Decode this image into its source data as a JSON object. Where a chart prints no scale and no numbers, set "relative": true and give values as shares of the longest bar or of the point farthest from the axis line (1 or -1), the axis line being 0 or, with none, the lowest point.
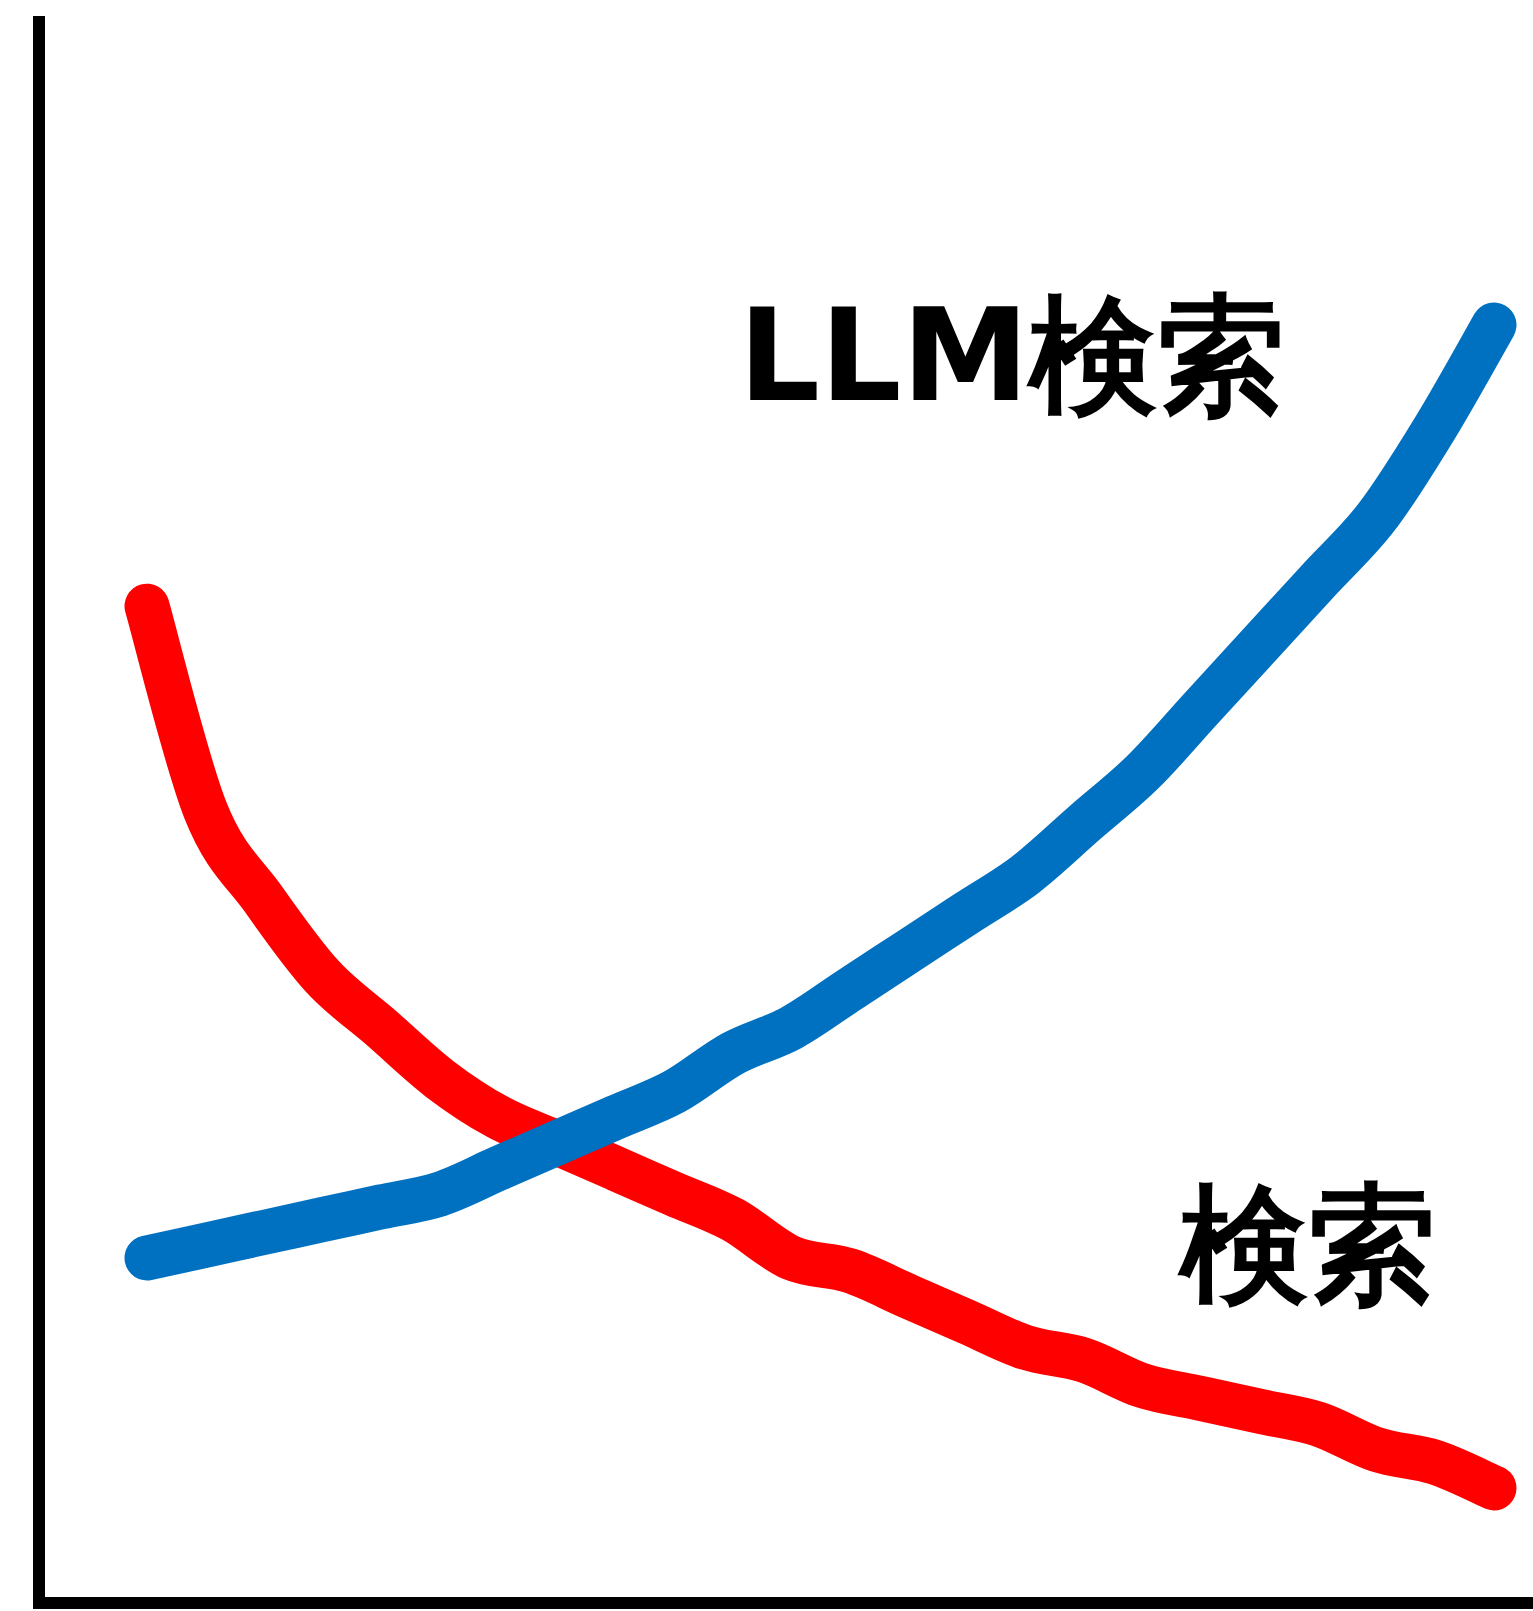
{
  "chart_data": {
    "type": "line",
    "relative": true,
    "legend": false,
    "grid": false,
    "marker": "none",
    "line_style": "solid",
    "categories": [
      null,
      null,
      null,
      null,
      null,
      null,
      null,
      null,
      null,
      null,
      null,
      null,
      null,
      null,
      null,
      null,
      null,
      null,
      null,
      null,
      null,
      null,
      null,
      null
    ],
    "series": [
      {
        "name": "検索",
        "color": "#ff0000",
        "values": [
          0.78,
          0.62,
          0.55,
          0.49,
          0.45,
          0.41,
          0.38,
          0.36,
          0.34,
          0.32,
          0.3,
          0.27,
          0.26,
          0.24,
          0.22,
          0.2,
          0.19,
          0.17,
          0.16,
          0.15,
          0.14,
          0.12,
          0.11,
          0.09
        ]
      },
      {
        "name": "LLM検索",
        "color": "#0070c0",
        "values": [
          0.27,
          0.28,
          0.29,
          0.3,
          0.31,
          0.32,
          0.34,
          0.36,
          0.38,
          0.4,
          0.43,
          0.45,
          0.48,
          0.51,
          0.54,
          0.57,
          0.61,
          0.65,
          0.7,
          0.75,
          0.8,
          0.85,
          0.92,
          1
        ]
      }
    ]
  }
}
